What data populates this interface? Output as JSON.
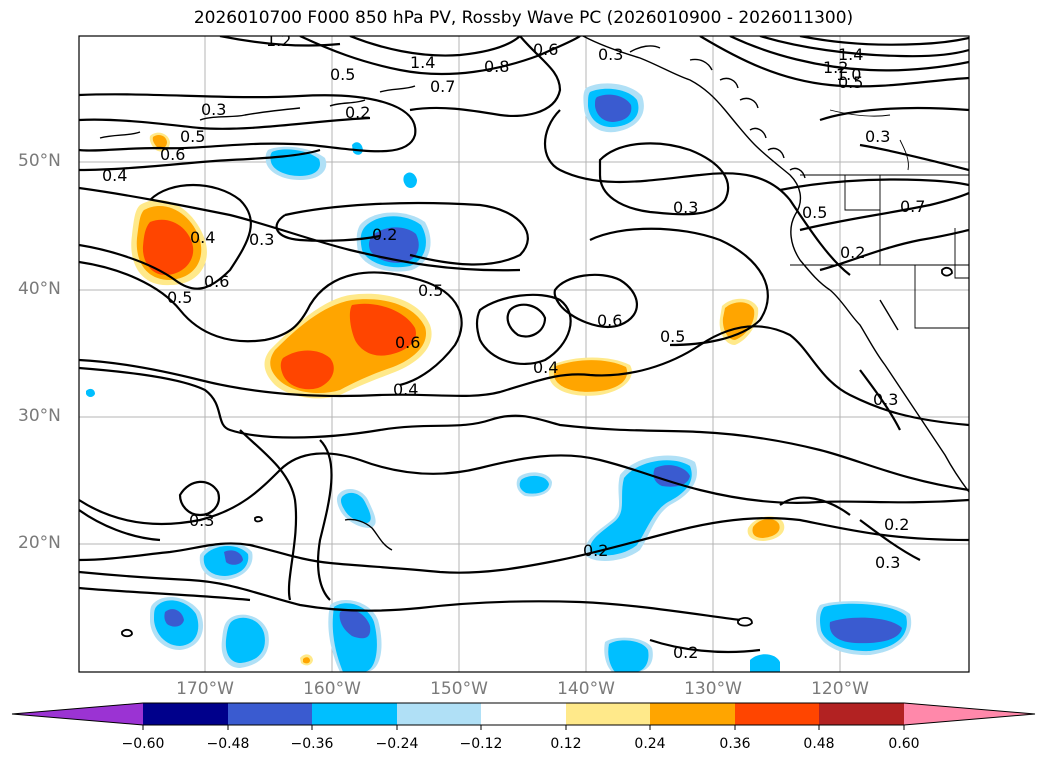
{
  "title": "2026010700 F000 850 hPa PV, Rossby Wave PC (2026010900 - 2026011300)",
  "axes": {
    "lat_ticks": [
      "50°N",
      "40°N",
      "30°N",
      "20°N"
    ],
    "lon_ticks": [
      "170°W",
      "160°W",
      "150°W",
      "140°W",
      "130°W",
      "120°W"
    ],
    "lat_range": [
      10,
      60
    ],
    "lon_range": [
      -180,
      -110
    ],
    "grid": true
  },
  "colorbar": {
    "ticks": [
      "−0.60",
      "−0.48",
      "−0.36",
      "−0.24",
      "−0.12",
      "0.12",
      "0.24",
      "0.36",
      "0.48",
      "0.60"
    ],
    "colors": [
      "#9b33d3",
      "#00008b",
      "#3a5bd0",
      "#00bfff",
      "#b0e0f6",
      "#ffffff",
      "#ffe98a",
      "#ffa500",
      "#ff4500",
      "#b22222",
      "#ff88aa"
    ],
    "extend": "both"
  },
  "contour_labels": [
    "1.2",
    "0.5",
    "1.4",
    "0.7",
    "0.8",
    "0.6",
    "0.3",
    "1.4",
    "1.2",
    "1.0",
    "0.5",
    "0.3",
    "0.2",
    "0.5",
    "0.6",
    "0.4",
    "0.3",
    "0.3",
    "0.5",
    "0.7",
    "0.2",
    "0.4",
    "0.3",
    "0.2",
    "0.6",
    "0.5",
    "0.5",
    "0.6",
    "0.5",
    "0.6",
    "0.4",
    "0.4",
    "0.3",
    "0.3",
    "0.2",
    "0.2",
    "0.3",
    "0.2"
  ]
}
